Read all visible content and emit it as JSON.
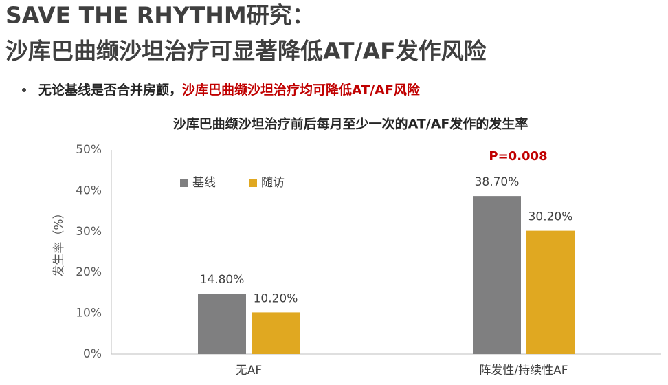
{
  "slide": {
    "title": [
      "SAVE THE RHYTHM研究：",
      "沙库巴曲缬沙坦治疗可显著降低AT/AF发作风险"
    ],
    "bullet": {
      "text": "无论基线是否合并房颤，",
      "highlight": "沙库巴曲缬沙坦治疗均可降低AT/AF风险"
    }
  },
  "chart_data": {
    "type": "bar",
    "title": "沙库巴曲缬沙坦治疗前后每月至少一次的AT/AF发作的发生率",
    "ylabel": "发生率（%）",
    "categories": [
      "无AF",
      "阵发性/持续性AF"
    ],
    "series": [
      {
        "name": "基线",
        "color": "#7f7f80",
        "values": [
          14.8,
          38.7
        ],
        "value_labels": [
          "14.80%",
          "38.70%"
        ]
      },
      {
        "name": "随访",
        "color": "#e0a821",
        "values": [
          10.2,
          30.2
        ],
        "value_labels": [
          "10.20%",
          "30.20%"
        ]
      }
    ],
    "annotations": [
      {
        "text": "P=0.008",
        "color": "#c00000"
      }
    ],
    "ylim": [
      0,
      50
    ],
    "yticks": [
      {
        "value": 0,
        "label": "0%"
      },
      {
        "value": 10,
        "label": "10%"
      },
      {
        "value": 20,
        "label": "20%"
      },
      {
        "value": 30,
        "label": "30%"
      },
      {
        "value": 40,
        "label": "40%"
      },
      {
        "value": 50,
        "label": "50%"
      }
    ],
    "grid": false,
    "legend": "top-left"
  }
}
